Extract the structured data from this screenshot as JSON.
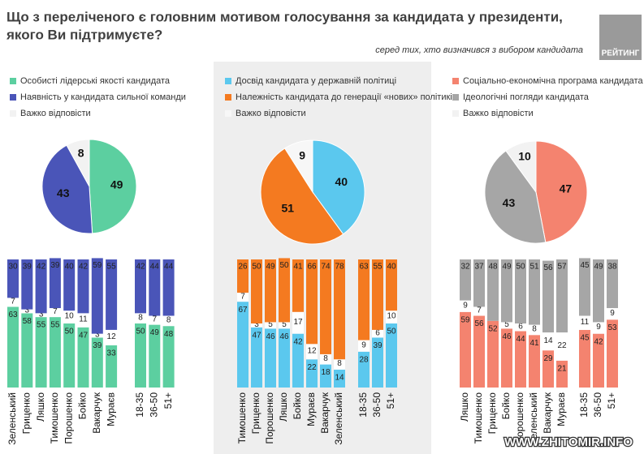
{
  "header": {
    "title": [
      "Що з переліченого є головним мотивом голосування за кандидата у президенти,",
      "якого Ви підтримуєте?"
    ],
    "subtitle": "серед тих, хто визначився з вибором кандидата",
    "logo": "РЕЙТИНГ",
    "watermark": "WWW.ZHITOMIR.INFO"
  },
  "chart_data": [
    {
      "type": "pie",
      "labels": [
        "Особисті лідерські якості кандидата",
        "Наявність у кандидата сильної команди",
        "Важко відповісти"
      ],
      "values": [
        49,
        43,
        8
      ],
      "colors": [
        "#5ccfa0",
        "#4a55b8",
        "#f2f2f2"
      ]
    },
    {
      "type": "stacked-bar",
      "categories": [
        "Зеленський",
        "Гриценко",
        "Ляшко",
        "Тимошенко",
        "Порошенко",
        "Бойко",
        "Вакарчук",
        "Мураєв",
        "18-35",
        "36-50",
        "51+"
      ],
      "series": [
        {
          "color": "#5ccfa0",
          "values": [
            63,
            58,
            55,
            55,
            50,
            47,
            39,
            33,
            50,
            49,
            48
          ]
        },
        {
          "color": "#ffffff",
          "values": [
            7,
            3,
            3,
            7,
            10,
            11,
            3,
            12,
            8,
            7,
            8
          ]
        },
        {
          "color": "#4a55b8",
          "values": [
            30,
            39,
            42,
            39,
            40,
            42,
            59,
            55,
            42,
            44,
            44
          ]
        }
      ]
    },
    {
      "type": "pie",
      "labels": [
        "Досвід кандидата у державній політиці",
        "Належність кандидата до генерації «нових» політиків",
        "Важко відповісти"
      ],
      "values": [
        40,
        51,
        9
      ],
      "colors": [
        "#5bc8ee",
        "#f47a20",
        "#f7f7f7"
      ]
    },
    {
      "type": "stacked-bar",
      "categories": [
        "Тимошенко",
        "Гриценко",
        "Порошенко",
        "Ляшко",
        "Бойко",
        "Мураєв",
        "Вакарчук",
        "Зеленський",
        "18-35",
        "36-50",
        "51+"
      ],
      "series": [
        {
          "color": "#5bc8ee",
          "values": [
            67,
            47,
            46,
            46,
            42,
            22,
            18,
            14,
            28,
            39,
            50
          ]
        },
        {
          "color": "#ffffff",
          "values": [
            7,
            3,
            5,
            5,
            17,
            12,
            8,
            8,
            9,
            6,
            10
          ]
        },
        {
          "color": "#f47a20",
          "values": [
            26,
            50,
            49,
            50,
            41,
            66,
            74,
            78,
            63,
            55,
            40
          ]
        }
      ]
    },
    {
      "type": "pie",
      "labels": [
        "Соціально-економічна програма кандидата",
        "Ідеологічні погляди кандидата",
        "Важко відповісти"
      ],
      "values": [
        47,
        43,
        10
      ],
      "colors": [
        "#f4836f",
        "#a6a6a6",
        "#f2f2f2"
      ]
    },
    {
      "type": "stacked-bar",
      "categories": [
        "Ляшко",
        "Тимошенко",
        "Гриценко",
        "Бойко",
        "Порошенко",
        "Зеленський",
        "Вакарчук",
        "Мураєв",
        "18-35",
        "36-50",
        "51+"
      ],
      "series": [
        {
          "color": "#f4836f",
          "values": [
            59,
            56,
            52,
            46,
            44,
            41,
            29,
            21,
            45,
            42,
            53
          ]
        },
        {
          "color": "#ffffff",
          "values": [
            9,
            7,
            null,
            5,
            6,
            8,
            14,
            22,
            11,
            9,
            9
          ]
        },
        {
          "color": "#a6a6a6",
          "values": [
            32,
            37,
            48,
            49,
            50,
            51,
            56,
            57,
            45,
            49,
            38
          ]
        }
      ]
    }
  ]
}
